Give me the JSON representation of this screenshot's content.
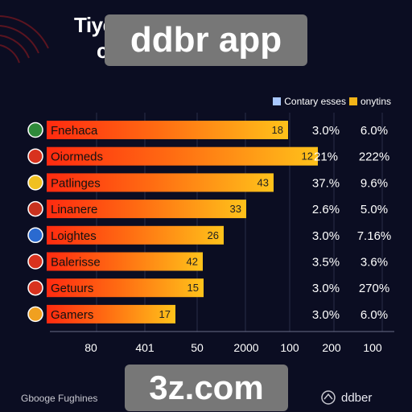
{
  "header": {
    "title_line1": "Tiye                               ernos,",
    "title_line2": "c                                  s"
  },
  "overlays": {
    "top": "ddbr app",
    "bottom": "3z.com"
  },
  "legend": {
    "label_a": "Contary esses",
    "label_b": "onytins"
  },
  "colors": {
    "background": "#0b0d22",
    "bar_start": "#ff2a10",
    "bar_end": "#ffc21a",
    "legend_a": "#a9c8ff",
    "legend_b": "#f2b418"
  },
  "chart_data": {
    "type": "bar",
    "orientation": "horizontal",
    "categories": [
      "Fnehaca",
      "Oiormeds",
      "Patlinges",
      "Linanere",
      "Loightes",
      "Balerisse",
      "Getuurs",
      "Gamers"
    ],
    "values": [
      18,
      12,
      43,
      33,
      26,
      42,
      15,
      17
    ],
    "icons": [
      "flag-icon",
      "flag-icon",
      "flag-icon",
      "flag-icon",
      "flag-icon",
      "flag-icon",
      "flag-icon",
      "flag-icon"
    ],
    "stats_a": [
      "3.0%",
      "21%",
      "37.%",
      "2.6%",
      "3.0%",
      "3.5%",
      "3.0%",
      "3.0%"
    ],
    "stats_b": [
      "6.0%",
      "222%",
      "9.6%",
      "5.0%",
      "7.16%",
      "3.6%",
      "270%",
      "6.0%"
    ],
    "x_tick_labels": [
      "80",
      "401",
      "50",
      "2000",
      "100",
      "200",
      "100"
    ],
    "grid": true
  },
  "footer": {
    "left": "Gbooge Fughines",
    "right": "ddber"
  }
}
